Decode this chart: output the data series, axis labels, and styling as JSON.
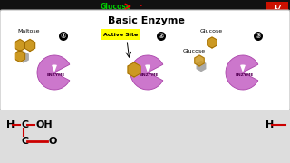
{
  "title": "Basic Enzyme",
  "title_fontsize": 8,
  "enzyme_color": "#cc77cc",
  "enzyme_edge_color": "#aa44aa",
  "glucose_fill": "#cc9922",
  "glucose_edge": "#996600",
  "glucose_shadow": "#aaaaaa",
  "active_site_bg": "#ffff00",
  "panel_bg": "#ffffff",
  "panel_edge": "#bbbbbb",
  "top_bar_bg": "#111111",
  "top_green": "#00cc00",
  "top_red_box": "#cc1100",
  "bottom_bg": "#dddddd",
  "black": "#000000",
  "red": "#cc0000",
  "label1": "Maltose",
  "label2": "Active Site",
  "label3_top": "Glucose",
  "label3_bot": "Glucose",
  "num1": "①",
  "num2": "②",
  "num3": "③",
  "enzyme_label": "ENZYME",
  "top_text": "Glucose",
  "top_number": "17",
  "bh1": "H",
  "bc1": "C",
  "boh": "OH",
  "bc2": "C",
  "bo": "O",
  "bh2": "H"
}
